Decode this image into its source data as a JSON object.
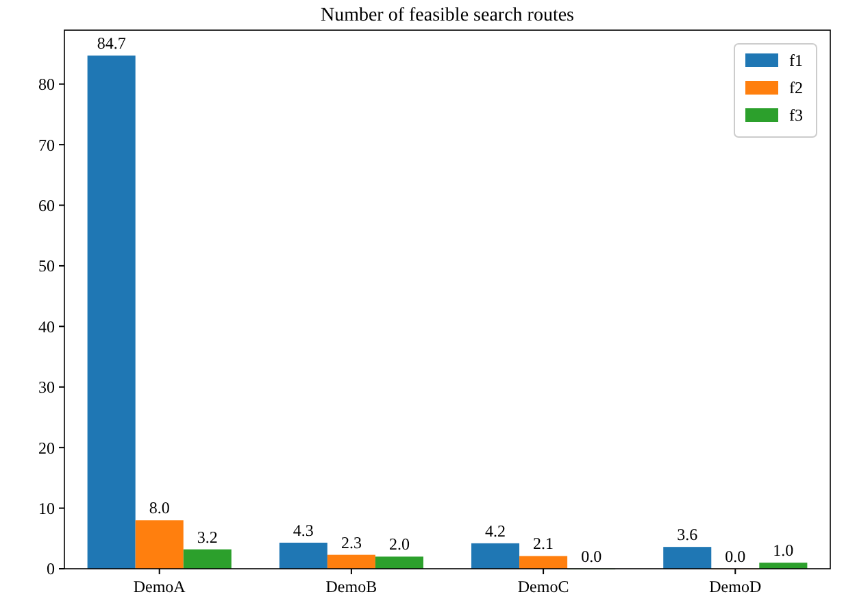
{
  "chart_data": {
    "type": "bar",
    "title": "Number of feasible search routes",
    "categories": [
      "DemoA",
      "DemoB",
      "DemoC",
      "DemoD"
    ],
    "series": [
      {
        "name": "f1",
        "color": "#1f77b4",
        "values": [
          84.7,
          4.3,
          4.2,
          3.6
        ],
        "value_labels": [
          "84.7",
          "4.3",
          "4.2",
          "3.6"
        ]
      },
      {
        "name": "f2",
        "color": "#ff7f0e",
        "values": [
          8.0,
          2.3,
          2.1,
          0.0
        ],
        "value_labels": [
          "8.0",
          "2.3",
          "2.1",
          "0.0"
        ]
      },
      {
        "name": "f3",
        "color": "#2ca02c",
        "values": [
          3.2,
          2.0,
          0.0,
          1.0
        ],
        "value_labels": [
          "3.2",
          "2.0",
          "0.0",
          "1.0"
        ]
      }
    ],
    "ylim": [
      0,
      88.9
    ],
    "yticks": [
      0,
      10,
      20,
      30,
      40,
      50,
      60,
      70,
      80
    ],
    "grid": false,
    "legend": "top right"
  }
}
